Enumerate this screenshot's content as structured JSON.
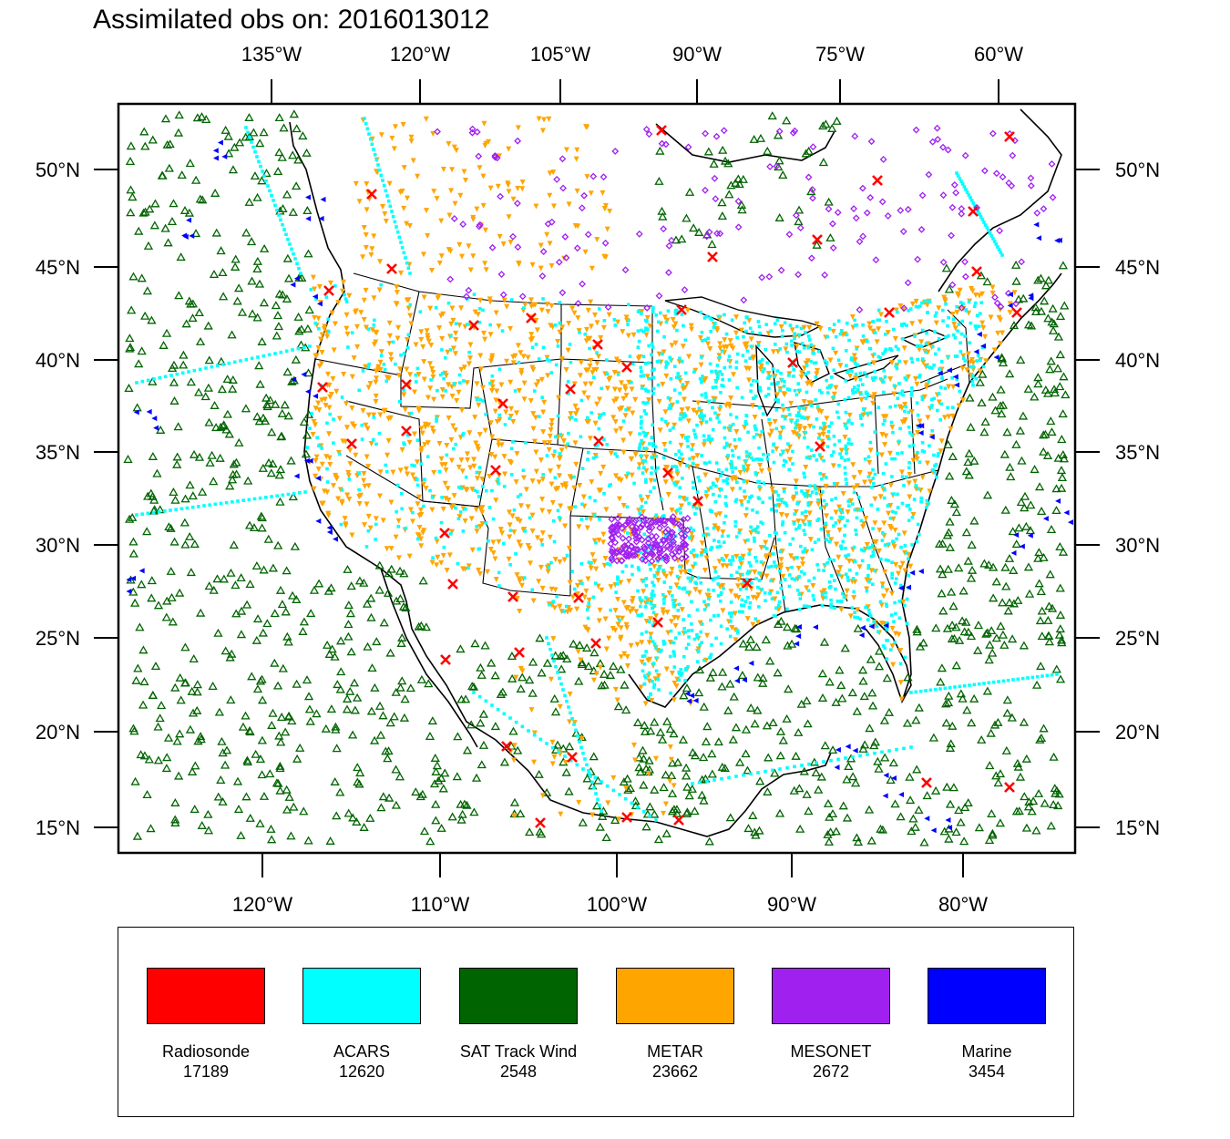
{
  "title": "Assimilated obs on: 2016013012",
  "map": {
    "projection": "lambert-conformal",
    "extent": {
      "lon_min": -128,
      "lon_max": -73,
      "lat_min": 14,
      "lat_max": 53
    },
    "top_axis_labels": [
      "135°W",
      "120°W",
      "105°W",
      "90°W",
      "75°W",
      "60°W"
    ],
    "bottom_axis_labels": [
      "120°W",
      "110°W",
      "100°W",
      "90°W",
      "80°W"
    ],
    "left_axis_labels": [
      "50°N",
      "45°N",
      "40°N",
      "35°N",
      "30°N",
      "25°N",
      "20°N",
      "15°N"
    ],
    "right_axis_labels": [
      "50°N",
      "45°N",
      "40°N",
      "35°N",
      "30°N",
      "25°N",
      "20°N",
      "15°N"
    ],
    "land_color": "#ffffff",
    "boundary_color": "#000000"
  },
  "observation_types": [
    {
      "name": "Radiosonde",
      "count": "17189",
      "color": "#ff0000",
      "marker": "cross"
    },
    {
      "name": "ACARS",
      "count": "12620",
      "color": "#00ffff",
      "marker": "square-dot"
    },
    {
      "name": "SAT Track Wind",
      "count": "2548",
      "color": "#006400",
      "marker": "open-triangle"
    },
    {
      "name": "METAR",
      "count": "23662",
      "color": "#ffa500",
      "marker": "filled-down-triangle"
    },
    {
      "name": "MESONET",
      "count": "2672",
      "color": "#a020f0",
      "marker": "open-diamond"
    },
    {
      "name": "Marine",
      "count": "3454",
      "color": "#0000ff",
      "marker": "left-triangle"
    }
  ]
}
